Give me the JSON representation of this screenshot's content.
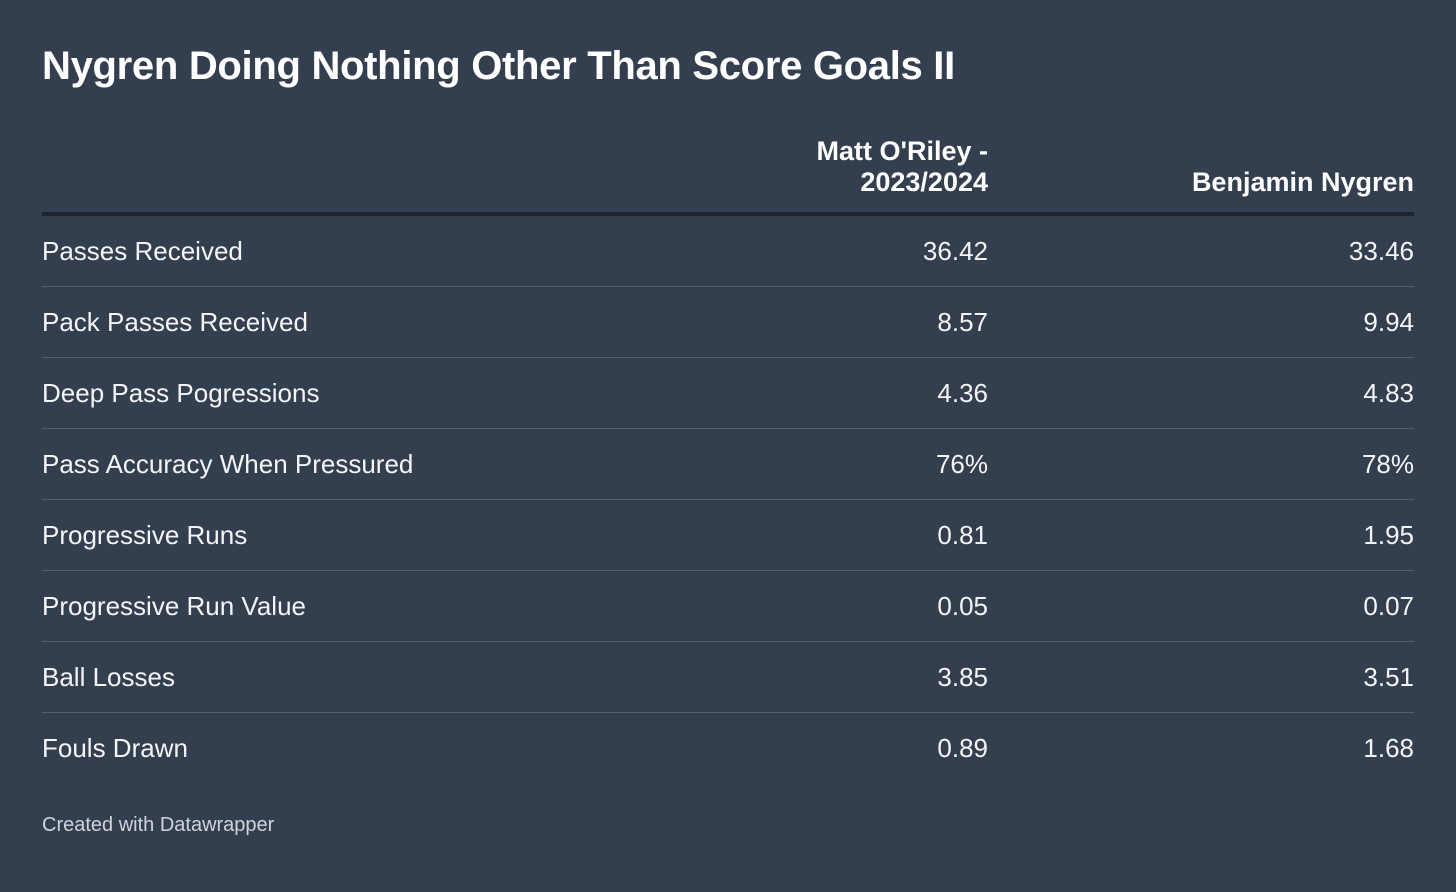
{
  "title": "Nygren Doing Nothing Other Than Score Goals II",
  "footer": "Created with Datawrapper",
  "colors": {
    "background": "#333e4e",
    "text": "#ffffff",
    "header_rule": "#1f2530",
    "row_divider": "#56606e"
  },
  "chart_data": {
    "type": "table",
    "title": "Nygren Doing Nothing Other Than Score Goals II",
    "columns": [
      "",
      "Matt O'Riley - 2023/2024",
      "Benjamin Nygren"
    ],
    "rows": [
      {
        "metric": "Passes Received",
        "values": [
          "36.42",
          "33.46"
        ]
      },
      {
        "metric": "Pack Passes Received",
        "values": [
          "8.57",
          "9.94"
        ]
      },
      {
        "metric": "Deep Pass Pogressions",
        "values": [
          "4.36",
          "4.83"
        ]
      },
      {
        "metric": "Pass Accuracy When Pressured",
        "values": [
          "76%",
          "78%"
        ]
      },
      {
        "metric": "Progressive Runs",
        "values": [
          "0.81",
          "1.95"
        ]
      },
      {
        "metric": "Progressive Run Value",
        "values": [
          "0.05",
          "0.07"
        ]
      },
      {
        "metric": "Ball Losses",
        "values": [
          "3.85",
          "3.51"
        ]
      },
      {
        "metric": "Fouls Drawn",
        "values": [
          "0.89",
          "1.68"
        ]
      }
    ]
  }
}
